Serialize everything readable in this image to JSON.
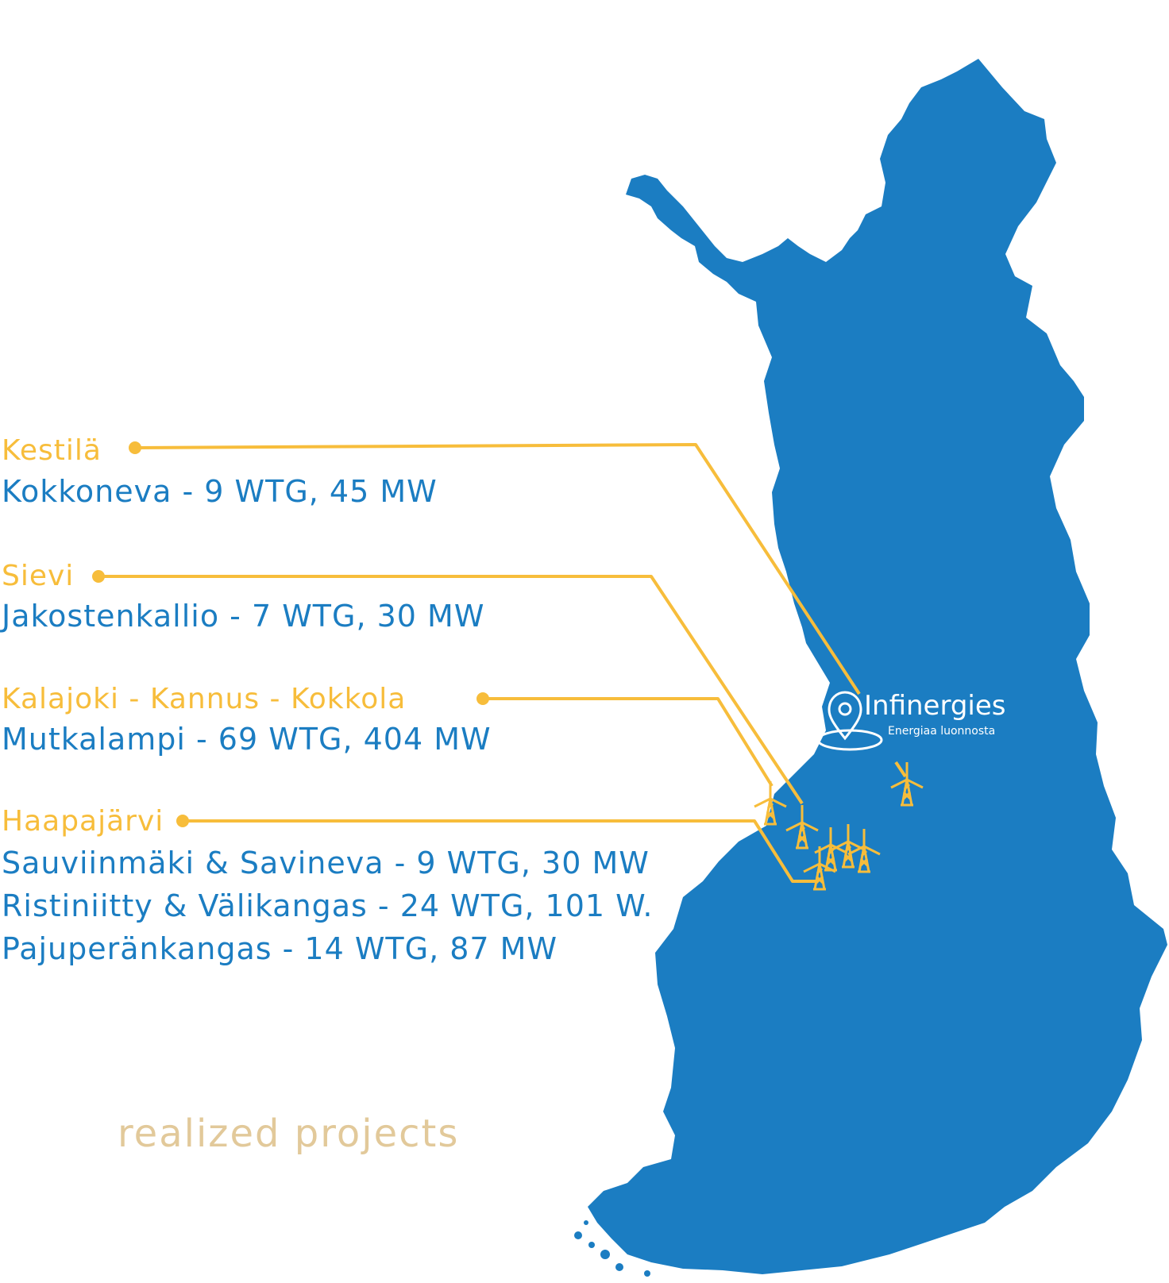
{
  "colors": {
    "map_fill": "#1b7dc2",
    "accent": "#f7bd3b",
    "project_text": "#1b7dc2",
    "footer_text": "#e2c99a",
    "logo_text": "#ffffff"
  },
  "regions": [
    {
      "place": "Kestilä",
      "projects": [
        "Kokkoneva - 9 WTG, 45 MW"
      ]
    },
    {
      "place": "Sievi",
      "projects": [
        "Jakostenkallio - 7 WTG, 30 MW"
      ]
    },
    {
      "place": "Kalajoki - Kannus - Kokkola",
      "projects": [
        "Mutkalampi - 69 WTG, 404 MW"
      ]
    },
    {
      "place": "Haapajärvi",
      "projects": [
        "Sauviinmäki & Savineva - 9 WTG, 30 MW",
        "Ristiniitty & Välikangas - 24 WTG, 101 W.",
        "Pajuperänkangas - 14 WTG, 87 MW"
      ]
    }
  ],
  "logo": {
    "name": "Infinergies",
    "tagline": "Energiaa luonnosta",
    "icon": "location-pin-icon"
  },
  "footer": {
    "label": "realized projects"
  },
  "map": {
    "country_icon": "finland-map",
    "turbine_icon": "wind-turbine-icon"
  }
}
